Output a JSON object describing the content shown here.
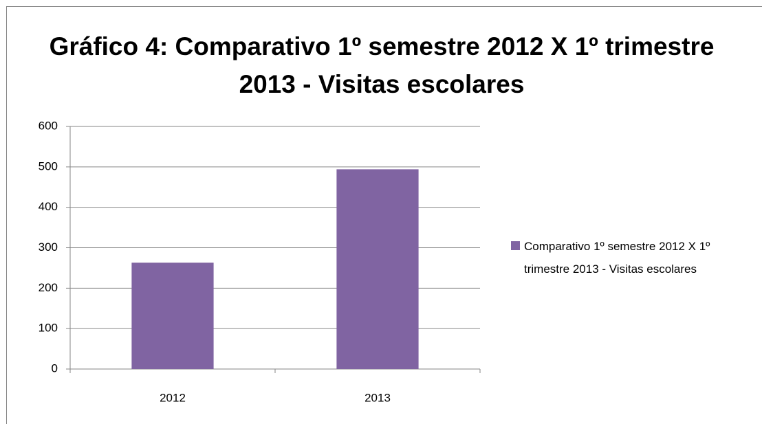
{
  "chart_data": {
    "type": "bar",
    "title": "Gráfico 4: Comparativo 1º semestre 2012 X 1º trimestre 2013 - Visitas escolares",
    "categories": [
      "2012",
      "2013"
    ],
    "series": [
      {
        "name": "Comparativo 1º semestre 2012 X 1º trimestre 2013 - Visitas escolares",
        "color": "#8064a2",
        "values": [
          263,
          494
        ]
      }
    ],
    "ylim": [
      0,
      600
    ],
    "yticks": [
      0,
      100,
      200,
      300,
      400,
      500,
      600
    ],
    "grid": true,
    "legend": "right"
  }
}
